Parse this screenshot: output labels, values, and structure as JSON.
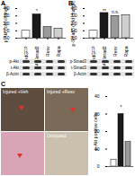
{
  "chart_data": [
    {
      "type": "bar",
      "title": "A",
      "y_label": "p-Akt (fold change)",
      "categories": [
        "AdGFP",
        "AdSmad3",
        "Resv",
        "Rapa"
      ],
      "values": [
        1,
        3.2,
        1.5,
        1.3
      ],
      "colors": [
        "#ffffff",
        "#1a1a1a",
        "#9a9a9a",
        "#cfcfcf"
      ],
      "ylim": [
        0,
        4
      ],
      "yticks": [
        0,
        1,
        2,
        3,
        4
      ],
      "annotations": [
        {
          "text": "*",
          "x": 1,
          "y": 3.6
        }
      ]
    },
    {
      "type": "bar",
      "title": "B",
      "y_label": "p-Smad3 (fold change)",
      "categories": [
        "AdGFP",
        "AdSmad3",
        "Resv",
        "Rapa"
      ],
      "values": [
        1,
        3.4,
        3.0,
        3.1
      ],
      "colors": [
        "#ffffff",
        "#1a1a1a",
        "#9a9a9a",
        "#cfcfcf"
      ],
      "ylim": [
        0,
        4
      ],
      "yticks": [
        0,
        1,
        2,
        3,
        4
      ],
      "annotations": [
        {
          "text": "**",
          "x": 1,
          "y": 3.7
        },
        {
          "text": "n.s.",
          "x": 2,
          "y": 3.5
        }
      ]
    },
    {
      "type": "bar",
      "title": "C",
      "y_label": "p-Akt positive cells",
      "categories": [
        null,
        null,
        null
      ],
      "values": [
        4,
        30,
        14
      ],
      "colors": [
        "#ffffff",
        "#1a1a1a",
        "#9a9a9a"
      ],
      "ylim": [
        0,
        40
      ],
      "yticks": [
        0,
        10,
        20,
        30,
        40
      ],
      "annotations": [
        {
          "text": "*",
          "x": 1,
          "y": 34
        }
      ]
    }
  ],
  "blots": [
    {
      "panel": "A",
      "labels": [
        "p-Akt",
        "t-Akt",
        "β-Actin"
      ]
    },
    {
      "panel": "B",
      "labels": [
        "p-Smad3",
        "t-Smad3",
        "β-Actin"
      ]
    }
  ],
  "images": [
    {
      "label": "Injured +Veh"
    },
    {
      "label": "Injured +Resv"
    },
    {
      "label": "Uninjured"
    }
  ]
}
